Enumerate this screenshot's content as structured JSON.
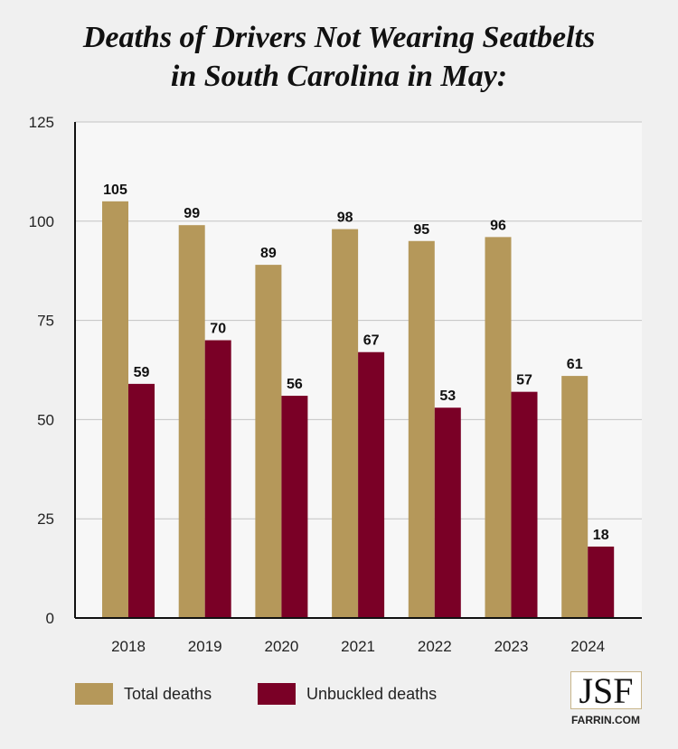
{
  "chart_data": {
    "type": "bar",
    "title_line1": "Deaths of Drivers Not Wearing Seatbelts",
    "title_line2": "in South Carolina in May:",
    "categories": [
      "2018",
      "2019",
      "2020",
      "2021",
      "2022",
      "2023",
      "2024"
    ],
    "series": [
      {
        "name": "Total deaths",
        "color": "#b5985a",
        "values": [
          105,
          99,
          89,
          98,
          95,
          96,
          61
        ]
      },
      {
        "name": "Unbuckled deaths",
        "color": "#7a0026",
        "values": [
          59,
          70,
          56,
          67,
          53,
          57,
          18
        ]
      }
    ],
    "ylim": [
      0,
      125
    ],
    "yticks": [
      0,
      25,
      50,
      75,
      100,
      125
    ],
    "grid": true,
    "legend": "bottom-left"
  },
  "logo": {
    "mark": "JSF",
    "site": "FARRIN.COM"
  }
}
